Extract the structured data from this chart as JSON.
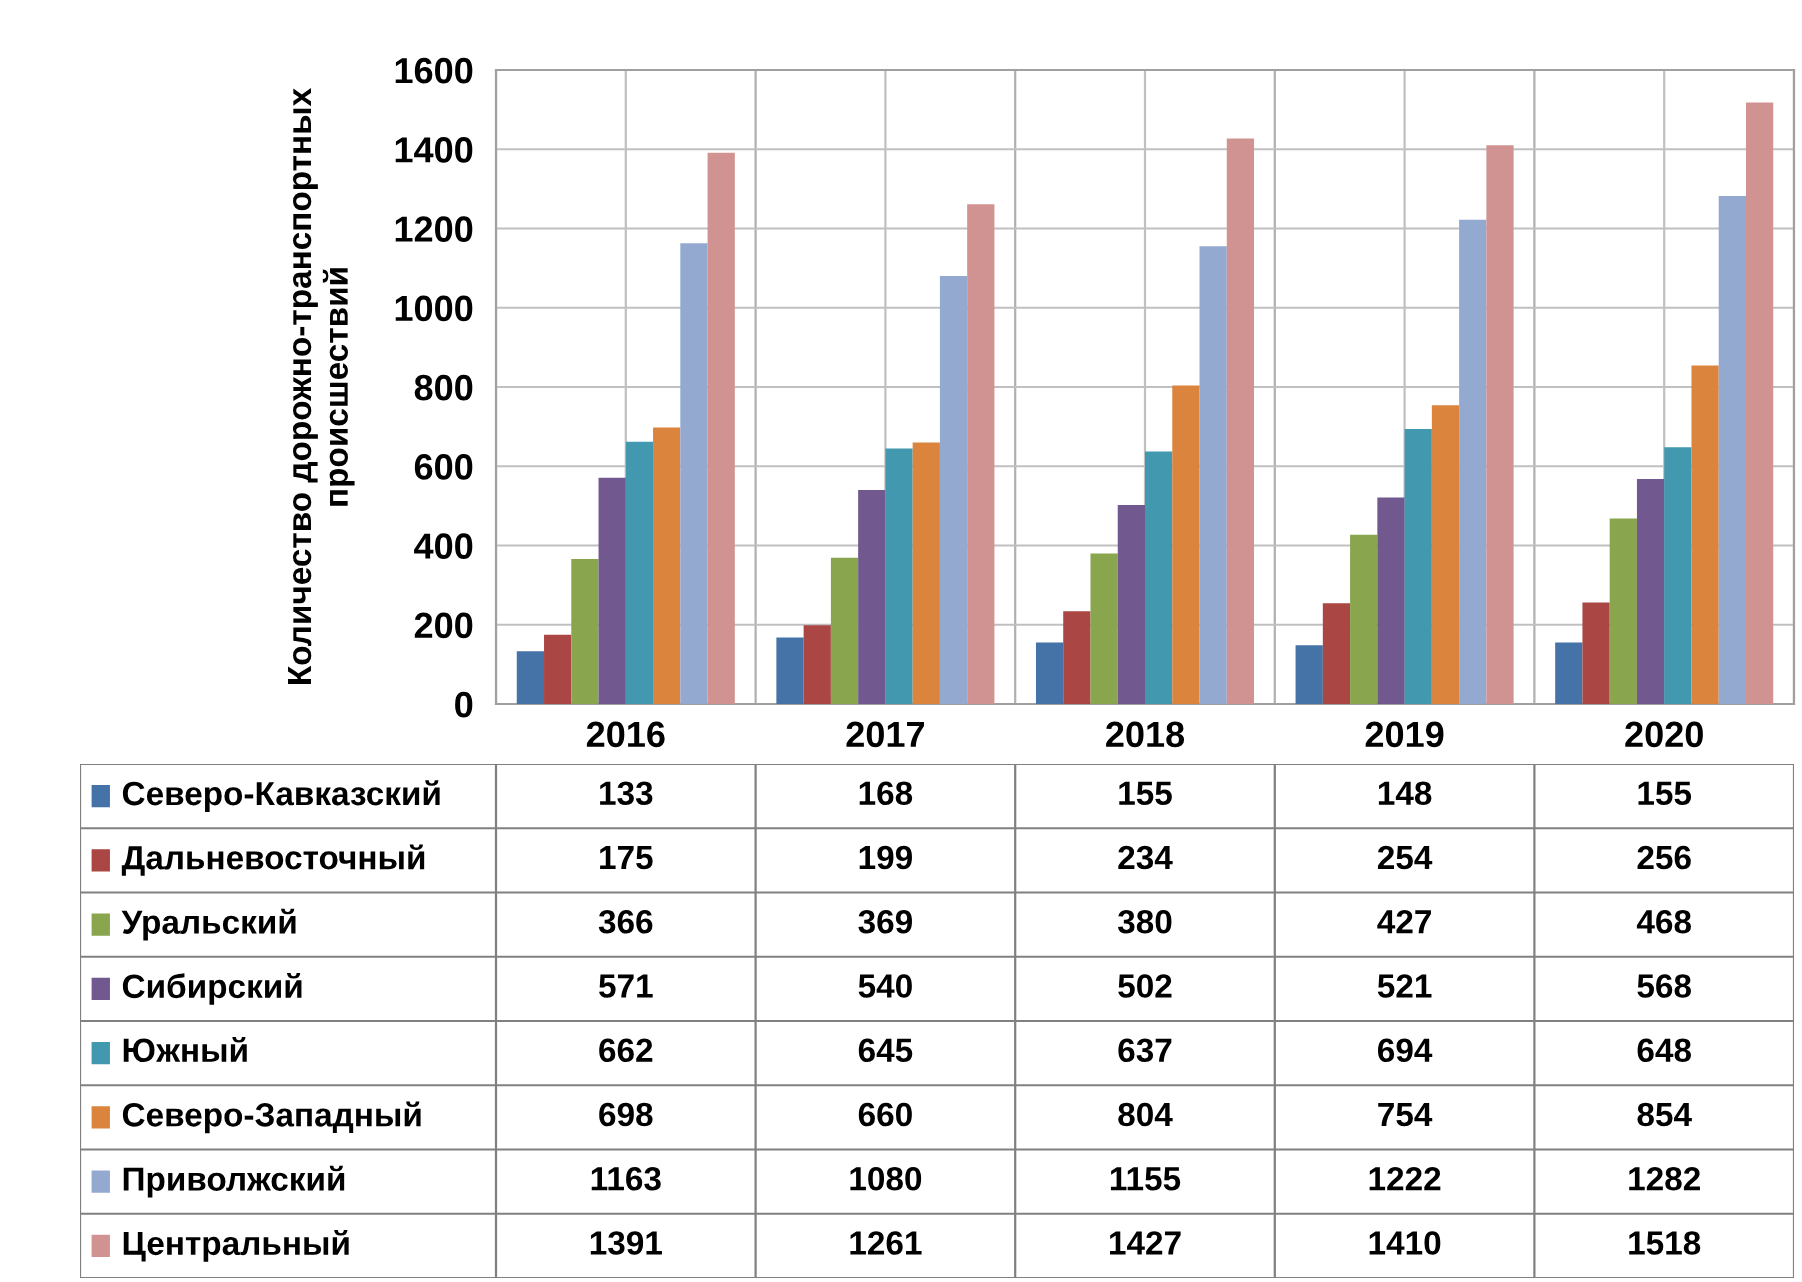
{
  "chart_data": {
    "type": "bar",
    "ylabel": "Количество дорожно-транспортных\nпроисшествий",
    "categories": [
      "2016",
      "2017",
      "2018",
      "2019",
      "2020"
    ],
    "series": [
      {
        "name": "Северо-Кавказский",
        "color": "#4572a7",
        "values": [
          133,
          168,
          155,
          148,
          155
        ]
      },
      {
        "name": "Дальневосточный",
        "color": "#aa4643",
        "values": [
          175,
          199,
          234,
          254,
          256
        ]
      },
      {
        "name": "Уральский",
        "color": "#89a54e",
        "values": [
          366,
          369,
          380,
          427,
          468
        ]
      },
      {
        "name": "Сибирский",
        "color": "#71588f",
        "values": [
          571,
          540,
          502,
          521,
          568
        ]
      },
      {
        "name": "Южный",
        "color": "#4198af",
        "values": [
          662,
          645,
          637,
          694,
          648
        ]
      },
      {
        "name": "Северо-Западный",
        "color": "#db843d",
        "values": [
          698,
          660,
          804,
          754,
          854
        ]
      },
      {
        "name": "Приволжский",
        "color": "#93a9cf",
        "values": [
          1163,
          1080,
          1155,
          1222,
          1282
        ]
      },
      {
        "name": "Центральный",
        "color": "#d19392",
        "values": [
          1391,
          1261,
          1427,
          1410,
          1518
        ]
      }
    ],
    "ylim": [
      0,
      1600
    ],
    "yticks": [
      0,
      200,
      400,
      600,
      800,
      1000,
      1200,
      1400,
      1600
    ],
    "grid": true,
    "data_labels": true,
    "legend": "bottom"
  }
}
